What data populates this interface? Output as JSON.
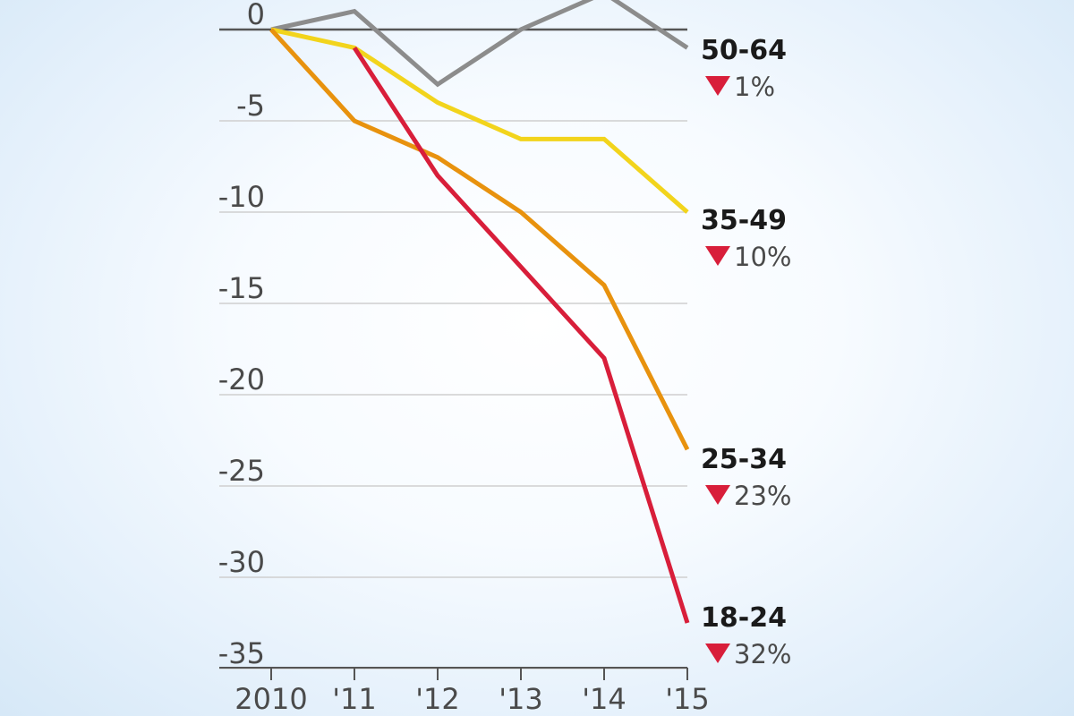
{
  "chart_data": {
    "type": "line",
    "title": "",
    "xlabel": "",
    "ylabel": "",
    "x": [
      "2010",
      "'11",
      "'12",
      "'13",
      "'14",
      "'15"
    ],
    "ylim": [
      -35,
      0
    ],
    "yticks": [
      0,
      -5,
      -10,
      -15,
      -20,
      -25,
      -30,
      -35
    ],
    "ytick_labels": [
      "0",
      "-5",
      "-10",
      "-15",
      "-20",
      "-25",
      "-30",
      "-35"
    ],
    "grid": true,
    "series": [
      {
        "name": "50-64",
        "change": "1%",
        "color": "#8c8c8c",
        "values": [
          0,
          1,
          -3,
          0,
          2,
          -1
        ]
      },
      {
        "name": "35-49",
        "change": "10%",
        "color": "#f2d41c",
        "values": [
          0,
          -1,
          -4,
          -6,
          -6,
          -10
        ]
      },
      {
        "name": "25-34",
        "change": "23%",
        "color": "#e8920e",
        "values": [
          0,
          -5,
          -7,
          -10,
          -14,
          -23
        ]
      },
      {
        "name": "18-24",
        "change": "32%",
        "color": "#d81e3a",
        "values": [
          null,
          -1,
          -8,
          -13,
          -18,
          -32.5
        ]
      }
    ],
    "change_marker_color": "#d81e3a"
  }
}
